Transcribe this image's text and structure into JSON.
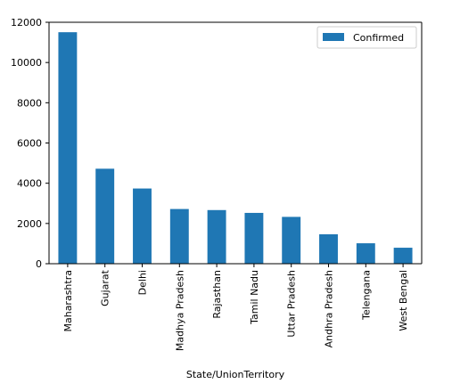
{
  "chart_data": {
    "type": "bar",
    "title": "",
    "xlabel": "State/UnionTerritory",
    "ylabel": "",
    "categories": [
      "Maharashtra",
      "Gujarat",
      "Delhi",
      "Madhya Pradesh",
      "Rajasthan",
      "Tamil Nadu",
      "Uttar Pradesh",
      "Andhra Pradesh",
      "Telengana",
      "West Bengal"
    ],
    "series": [
      {
        "name": "Confirmed",
        "values": [
          11506,
          4721,
          3738,
          2719,
          2666,
          2526,
          2328,
          1463,
          1016,
          795
        ],
        "color": "#1f77b4"
      }
    ],
    "ylim": [
      0,
      12000
    ],
    "yticks": [
      0,
      2000,
      4000,
      6000,
      8000,
      10000,
      12000
    ],
    "ytick_labels": [
      "0",
      "2000",
      "4000",
      "6000",
      "8000",
      "10000",
      "12000"
    ],
    "grid": false,
    "legend_position": "top-right"
  }
}
